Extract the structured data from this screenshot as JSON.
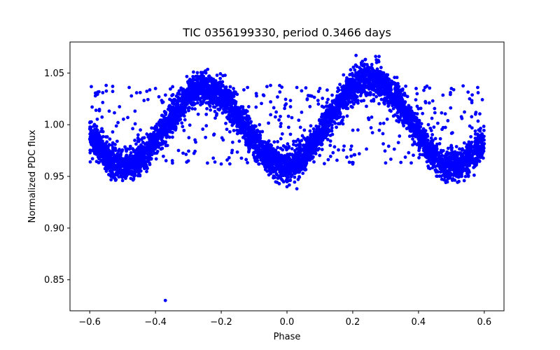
{
  "chart_data": {
    "type": "scatter",
    "title": "TIC 0356199330, period 0.3466 days",
    "xlabel": "Phase",
    "ylabel": "Normalized PDC flux",
    "xlim": [
      -0.66,
      0.66
    ],
    "ylim": [
      0.82,
      1.08
    ],
    "xticks": [
      -0.6,
      -0.4,
      -0.2,
      0.0,
      0.2,
      0.4,
      0.6
    ],
    "xtick_labels": [
      "−0.6",
      "−0.4",
      "−0.2",
      "0.0",
      "0.2",
      "0.4",
      "0.6"
    ],
    "yticks": [
      0.85,
      0.9,
      0.95,
      1.0,
      1.05
    ],
    "ytick_labels": [
      "0.85",
      "0.90",
      "0.95",
      "1.00",
      "1.05"
    ],
    "grid": false,
    "legend": "none",
    "marker_color": "#0000ff",
    "series": [
      {
        "phase_range": [
          -0.6,
          0.6
        ],
        "model": "Phase-folded light curve, ~1.0 + 0.04*cos(4*pi*(phase-0.25)), scatter ~0.008",
        "anchor_points": [
          {
            "x": -0.6,
            "y": 0.99
          },
          {
            "x": -0.5,
            "y": 0.963
          },
          {
            "x": -0.26,
            "y": 1.035
          },
          {
            "x": 0.0,
            "y": 0.958
          },
          {
            "x": 0.25,
            "y": 1.045
          },
          {
            "x": 0.5,
            "y": 0.962
          },
          {
            "x": 0.6,
            "y": 0.99
          }
        ],
        "outliers": [
          {
            "x": -0.37,
            "y": 0.83
          },
          {
            "x": 0.21,
            "y": 1.067
          },
          {
            "x": 0.28,
            "y": 1.066
          },
          {
            "x": -0.55,
            "y": 1.038
          },
          {
            "x": -0.48,
            "y": 1.036
          },
          {
            "x": -0.4,
            "y": 1.035
          },
          {
            "x": -0.12,
            "y": 1.036
          },
          {
            "x": -0.05,
            "y": 1.038
          },
          {
            "x": 0.03,
            "y": 1.036
          },
          {
            "x": 0.1,
            "y": 1.035
          },
          {
            "x": 0.42,
            "y": 1.036
          },
          {
            "x": 0.5,
            "y": 1.035
          },
          {
            "x": 0.58,
            "y": 1.036
          },
          {
            "x": -0.3,
            "y": 0.965
          },
          {
            "x": -0.2,
            "y": 0.962
          },
          {
            "x": 0.2,
            "y": 0.962
          },
          {
            "x": 0.3,
            "y": 0.963
          },
          {
            "x": 0.0,
            "y": 0.94
          },
          {
            "x": 0.03,
            "y": 0.938
          },
          {
            "x": -0.5,
            "y": 0.946
          }
        ]
      }
    ]
  }
}
